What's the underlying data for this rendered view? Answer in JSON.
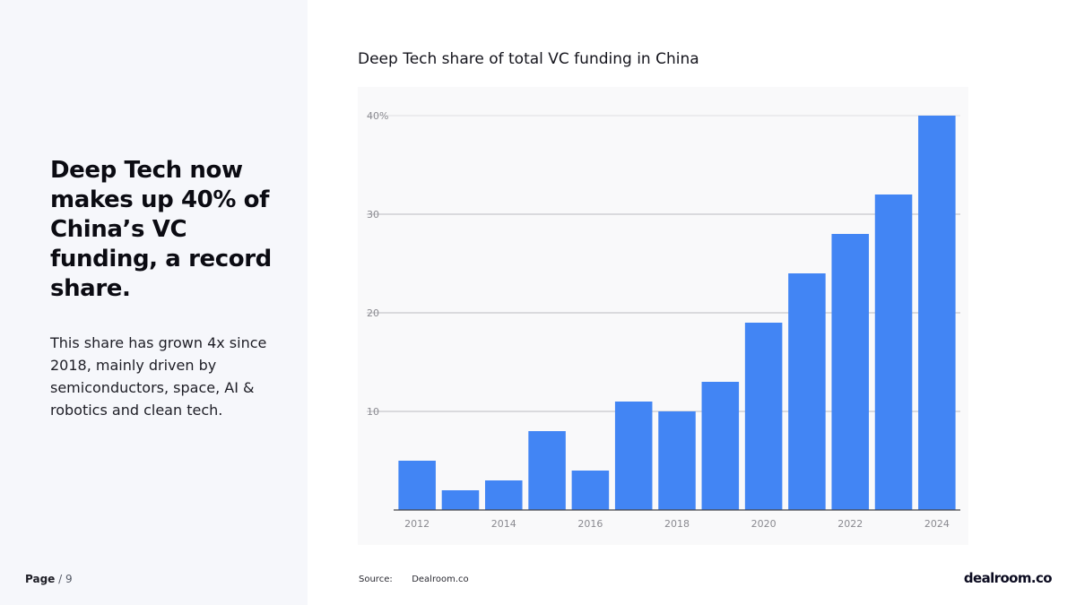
{
  "slide": {
    "headline": "Deep Tech now makes up 40% of China’s VC funding, a record share.",
    "body": "This share has grown 4x since 2018, mainly driven by semiconductors, space, AI & robotics and clean tech.",
    "page_label": "Page",
    "page_number": "/ 9",
    "source_label": "Source:",
    "source_value": "Dealroom.co",
    "brand": "dealroom.co"
  },
  "colors": {
    "bar": "#4285f4",
    "grid": "#c8c8cc",
    "tick_text": "#8a8a90"
  },
  "chart_data": {
    "type": "bar",
    "title": "Deep Tech share of total VC funding in China",
    "categories": [
      "2012",
      "2013",
      "2014",
      "2015",
      "2016",
      "2017",
      "2018",
      "2019",
      "2020",
      "2021",
      "2022",
      "2023",
      "2024"
    ],
    "values": [
      5,
      2,
      3,
      8,
      4,
      11,
      10,
      13,
      19,
      24,
      28,
      32,
      40
    ],
    "x_tick_labels": [
      "2012",
      "2014",
      "2016",
      "2018",
      "2020",
      "2022",
      "2024"
    ],
    "y_ticks": [
      {
        "value": 10,
        "label": "10"
      },
      {
        "value": 20,
        "label": "20"
      },
      {
        "value": 30,
        "label": "30"
      },
      {
        "value": 40,
        "label": "40%"
      }
    ],
    "ylim": [
      0,
      40
    ],
    "xlabel": "",
    "ylabel": "",
    "grid": true,
    "legend": "none"
  }
}
